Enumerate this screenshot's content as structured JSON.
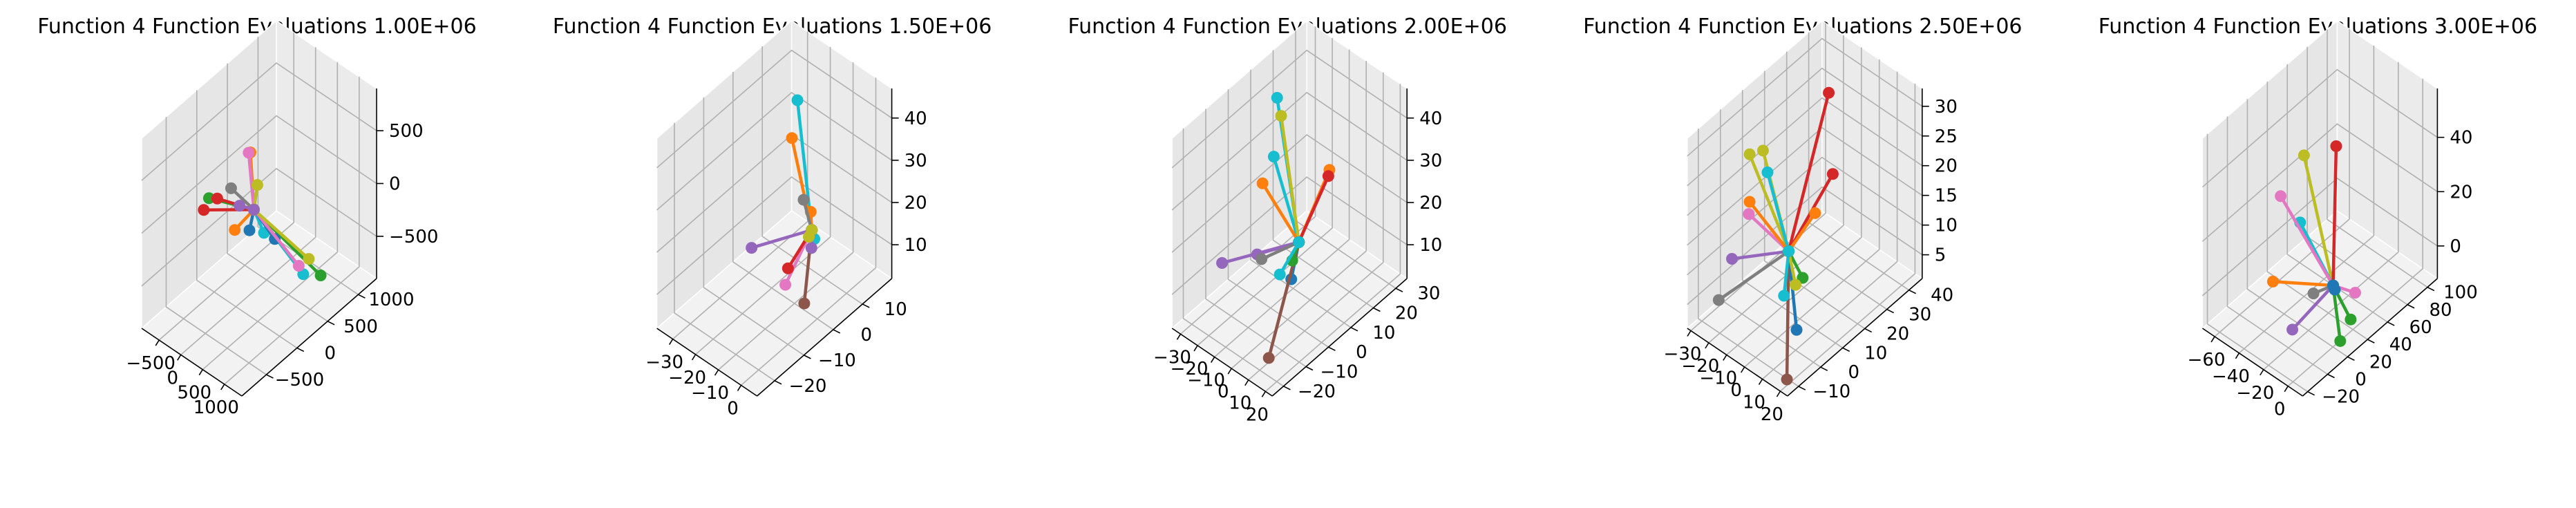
{
  "figure": {
    "background": "#ffffff",
    "palette": [
      "#1f77b4",
      "#ff7f0e",
      "#2ca02c",
      "#d62728",
      "#9467bd",
      "#8c564b",
      "#e377c2",
      "#7f7f7f",
      "#bcbd22",
      "#17becf"
    ]
  },
  "chart_data": [
    {
      "type": "scatter",
      "style": "3d-line-segments",
      "title": "Function 4 Function Evaluations 1.00E+06",
      "xlim": [
        -900,
        1400
      ],
      "ylim": [
        -900,
        1300
      ],
      "zlim": [
        -900,
        900
      ],
      "xticks": [
        {
          "v": -500,
          "label": "−500"
        },
        {
          "v": 0,
          "label": "0"
        },
        {
          "v": 500,
          "label": "500"
        },
        {
          "v": 1000,
          "label": "1000"
        }
      ],
      "yticks": [
        {
          "v": -500,
          "label": "−500"
        },
        {
          "v": 0,
          "label": "0"
        },
        {
          "v": 500,
          "label": "500"
        },
        {
          "v": 1000,
          "label": "1000"
        }
      ],
      "zticks": [
        {
          "v": -500,
          "label": "−500"
        },
        {
          "v": 0,
          "label": "0"
        },
        {
          "v": 500,
          "label": "500"
        }
      ],
      "hub": [
        200,
        150,
        0
      ],
      "series": [
        {
          "color": "#17becf",
          "endpoint": [
            700,
            600,
            -700
          ]
        },
        {
          "color": "#17becf",
          "endpoint": [
            80,
            400,
            -380
          ]
        },
        {
          "color": "#ff7f0e",
          "endpoint": [
            -450,
            300,
            -450
          ]
        },
        {
          "color": "#ff7f0e",
          "endpoint": [
            -300,
            450,
            250
          ]
        },
        {
          "color": "#2ca02c",
          "endpoint": [
            1100,
            600,
            -600
          ]
        },
        {
          "color": "#2ca02c",
          "endpoint": [
            -550,
            -50,
            0
          ]
        },
        {
          "color": "#d62728",
          "endpoint": [
            -600,
            -100,
            -100
          ]
        },
        {
          "color": "#d62728",
          "endpoint": [
            -500,
            50,
            -40
          ]
        },
        {
          "color": "#1f77b4",
          "endpoint": [
            450,
            -100,
            0
          ]
        },
        {
          "color": "#1f77b4",
          "endpoint": [
            750,
            100,
            -100
          ]
        },
        {
          "color": "#e377c2",
          "endpoint": [
            150,
            100,
            550
          ]
        },
        {
          "color": "#e377c2",
          "endpoint": [
            1300,
            100,
            -200
          ]
        },
        {
          "color": "#7f7f7f",
          "endpoint": [
            450,
            -400,
            550
          ]
        },
        {
          "color": "#bcbd22",
          "endpoint": [
            350,
            100,
            300
          ]
        },
        {
          "color": "#bcbd22",
          "endpoint": [
            1250,
            300,
            -250
          ]
        },
        {
          "color": "#9467bd",
          "endpoint": [
            -200,
            200,
            -100
          ]
        }
      ]
    },
    {
      "type": "scatter",
      "style": "3d-line-segments",
      "title": "Function 4 Function Evaluations 1.50E+06",
      "xlim": [
        -37,
        7
      ],
      "ylim": [
        -26,
        20
      ],
      "zlim": [
        2,
        47
      ],
      "xticks": [
        {
          "v": -30,
          "label": "−30"
        },
        {
          "v": -20,
          "label": "−20"
        },
        {
          "v": -10,
          "label": "−10"
        },
        {
          "v": 0,
          "label": "0"
        }
      ],
      "yticks": [
        {
          "v": -20,
          "label": "−20"
        },
        {
          "v": -10,
          "label": "−10"
        },
        {
          "v": 0,
          "label": "0"
        },
        {
          "v": 10,
          "label": "10"
        }
      ],
      "zticks": [
        {
          "v": 10,
          "label": "10"
        },
        {
          "v": 20,
          "label": "20"
        },
        {
          "v": 30,
          "label": "30"
        },
        {
          "v": 40,
          "label": "40"
        }
      ],
      "hub": [
        -5,
        2,
        20
      ],
      "series": [
        {
          "color": "#17becf",
          "endpoint": [
            -19,
            8,
            42
          ]
        },
        {
          "color": "#17becf",
          "endpoint": [
            -9,
            6,
            14
          ]
        },
        {
          "color": "#ff7f0e",
          "endpoint": [
            -24,
            10,
            30
          ]
        },
        {
          "color": "#ff7f0e",
          "endpoint": [
            -8,
            4,
            22
          ]
        },
        {
          "color": "#e377c2",
          "endpoint": [
            4,
            -14,
            20
          ]
        },
        {
          "color": "#d62728",
          "endpoint": [
            0,
            -10,
            20
          ]
        },
        {
          "color": "#8c564b",
          "endpoint": [
            2,
            -6,
            10
          ]
        },
        {
          "color": "#9467bd",
          "endpoint": [
            -34,
            4,
            4
          ]
        },
        {
          "color": "#9467bd",
          "endpoint": [
            0,
            -2,
            20
          ]
        },
        {
          "color": "#7f7f7f",
          "endpoint": [
            -6,
            0,
            28
          ]
        },
        {
          "color": "#bcbd22",
          "endpoint": [
            -5,
            1,
            19
          ]
        }
      ]
    },
    {
      "type": "scatter",
      "style": "3d-line-segments",
      "title": "Function 4 Function Evaluations 2.00E+06",
      "xlim": [
        -35,
        24
      ],
      "ylim": [
        -25,
        35
      ],
      "zlim": [
        2,
        47
      ],
      "xticks": [
        {
          "v": -30,
          "label": "−30"
        },
        {
          "v": -20,
          "label": "−20"
        },
        {
          "v": -10,
          "label": "−10"
        },
        {
          "v": 0,
          "label": "0"
        },
        {
          "v": 10,
          "label": "10"
        },
        {
          "v": 20,
          "label": "20"
        }
      ],
      "yticks": [
        {
          "v": -20,
          "label": "−20"
        },
        {
          "v": -10,
          "label": "−10"
        },
        {
          "v": 0,
          "label": "0"
        },
        {
          "v": 10,
          "label": "10"
        },
        {
          "v": 20,
          "label": "20"
        },
        {
          "v": 30,
          "label": "30"
        }
      ],
      "zticks": [
        {
          "v": 10,
          "label": "10"
        },
        {
          "v": 20,
          "label": "20"
        },
        {
          "v": 30,
          "label": "30"
        },
        {
          "v": 40,
          "label": "40"
        }
      ],
      "hub": [
        0,
        5,
        18
      ],
      "series": [
        {
          "color": "#17becf",
          "endpoint": [
            -30,
            18,
            38
          ]
        },
        {
          "color": "#17becf",
          "endpoint": [
            -28,
            15,
            26
          ]
        },
        {
          "color": "#bcbd22",
          "endpoint": [
            -25,
            16,
            36
          ]
        },
        {
          "color": "#ff7f0e",
          "endpoint": [
            18,
            5,
            40
          ]
        },
        {
          "color": "#d62728",
          "endpoint": [
            20,
            3,
            40
          ]
        },
        {
          "color": "#ff7f0e",
          "endpoint": [
            -28,
            10,
            22
          ]
        },
        {
          "color": "#1f77b4",
          "endpoint": [
            18,
            -12,
            22
          ]
        },
        {
          "color": "#8c564b",
          "endpoint": [
            18,
            -22,
            8
          ]
        },
        {
          "color": "#9467bd",
          "endpoint": [
            -32,
            -5,
            9
          ]
        },
        {
          "color": "#9467bd",
          "endpoint": [
            -14,
            -3,
            15
          ]
        },
        {
          "color": "#7f7f7f",
          "endpoint": [
            -22,
            5,
            8
          ]
        },
        {
          "color": "#2ca02c",
          "endpoint": [
            8,
            -4,
            20
          ]
        },
        {
          "color": "#17becf",
          "endpoint": [
            6,
            -8,
            18
          ]
        }
      ]
    },
    {
      "type": "scatter",
      "style": "3d-line-segments",
      "title": "Function 4 Function Evaluations 2.50E+06",
      "xlim": [
        -32,
        24
      ],
      "ylim": [
        -15,
        46
      ],
      "zlim": [
        1,
        33
      ],
      "xticks": [
        {
          "v": -30,
          "label": "−30"
        },
        {
          "v": -20,
          "label": "−20"
        },
        {
          "v": -10,
          "label": "−10"
        },
        {
          "v": 0,
          "label": "0"
        },
        {
          "v": 10,
          "label": "10"
        },
        {
          "v": 20,
          "label": "20"
        }
      ],
      "yticks": [
        {
          "v": -10,
          "label": "−10"
        },
        {
          "v": 0,
          "label": "0"
        },
        {
          "v": 10,
          "label": "10"
        },
        {
          "v": 20,
          "label": "20"
        },
        {
          "v": 30,
          "label": "30"
        },
        {
          "v": 40,
          "label": "40"
        }
      ],
      "zticks": [
        {
          "v": 5,
          "label": "5"
        },
        {
          "v": 10,
          "label": "10"
        },
        {
          "v": 15,
          "label": "15"
        },
        {
          "v": 20,
          "label": "20"
        },
        {
          "v": 25,
          "label": "25"
        },
        {
          "v": 30,
          "label": "30"
        }
      ],
      "hub": [
        0,
        5,
        14
      ],
      "series": [
        {
          "color": "#d62728",
          "endpoint": [
            -6,
            28,
            32
          ]
        },
        {
          "color": "#d62728",
          "endpoint": [
            16,
            12,
            28
          ]
        },
        {
          "color": "#ff7f0e",
          "endpoint": [
            16,
            4,
            24
          ]
        },
        {
          "color": "#bcbd22",
          "endpoint": [
            -28,
            10,
            23
          ]
        },
        {
          "color": "#bcbd22",
          "endpoint": [
            -23,
            12,
            24
          ]
        },
        {
          "color": "#17becf",
          "endpoint": [
            -18,
            10,
            22
          ]
        },
        {
          "color": "#e377c2",
          "endpoint": [
            -26,
            8,
            14
          ]
        },
        {
          "color": "#ff7f0e",
          "endpoint": [
            -28,
            10,
            15
          ]
        },
        {
          "color": "#9467bd",
          "endpoint": [
            -28,
            2,
            8
          ]
        },
        {
          "color": "#7f7f7f",
          "endpoint": [
            -28,
            -4,
            3
          ]
        },
        {
          "color": "#8c564b",
          "endpoint": [
            20,
            -12,
            2
          ]
        },
        {
          "color": "#1f77b4",
          "endpoint": [
            18,
            -6,
            8
          ]
        },
        {
          "color": "#2ca02c",
          "endpoint": [
            14,
            0,
            14
          ]
        },
        {
          "color": "#bcbd22",
          "endpoint": [
            10,
            0,
            12
          ]
        },
        {
          "color": "#17becf",
          "endpoint": [
            6,
            -2,
            10
          ]
        }
      ]
    },
    {
      "type": "scatter",
      "style": "3d-line-segments",
      "title": "Function 4 Function Evaluations 3.00E+06",
      "xlim": [
        -70,
        12
      ],
      "ylim": [
        -25,
        110
      ],
      "zlim": [
        -12,
        58
      ],
      "xticks": [
        {
          "v": -60,
          "label": "−60"
        },
        {
          "v": -40,
          "label": "−40"
        },
        {
          "v": -20,
          "label": "−20"
        },
        {
          "v": 0,
          "label": "0"
        }
      ],
      "yticks": [
        {
          "v": -20,
          "label": "−20"
        },
        {
          "v": 0,
          "label": "0"
        },
        {
          "v": 20,
          "label": "20"
        },
        {
          "v": 40,
          "label": "40"
        },
        {
          "v": 60,
          "label": "60"
        },
        {
          "v": 80,
          "label": "80"
        },
        {
          "v": 100,
          "label": "100"
        }
      ],
      "zticks": [
        {
          "v": 0,
          "label": "0"
        },
        {
          "v": 20,
          "label": "20"
        },
        {
          "v": 40,
          "label": "40"
        }
      ],
      "hub": [
        -8,
        30,
        5
      ],
      "series": [
        {
          "color": "#bcbd22",
          "endpoint": [
            -40,
            40,
            40
          ]
        },
        {
          "color": "#d62728",
          "endpoint": [
            -30,
            60,
            40
          ]
        },
        {
          "color": "#17becf",
          "endpoint": [
            -35,
            30,
            20
          ]
        },
        {
          "color": "#e377c2",
          "endpoint": [
            -55,
            35,
            22
          ]
        },
        {
          "color": "#e377c2",
          "endpoint": [
            6,
            35,
            5
          ]
        },
        {
          "color": "#ff7f0e",
          "endpoint": [
            -45,
            15,
            0
          ]
        },
        {
          "color": "#9467bd",
          "endpoint": [
            -25,
            10,
            -10
          ]
        },
        {
          "color": "#2ca02c",
          "endpoint": [
            6,
            20,
            -8
          ]
        },
        {
          "color": "#2ca02c",
          "endpoint": [
            8,
            28,
            -2
          ]
        },
        {
          "color": "#7f7f7f",
          "endpoint": [
            -20,
            25,
            0
          ]
        },
        {
          "color": "#1f77b4",
          "endpoint": [
            -5,
            28,
            5
          ]
        }
      ]
    }
  ]
}
